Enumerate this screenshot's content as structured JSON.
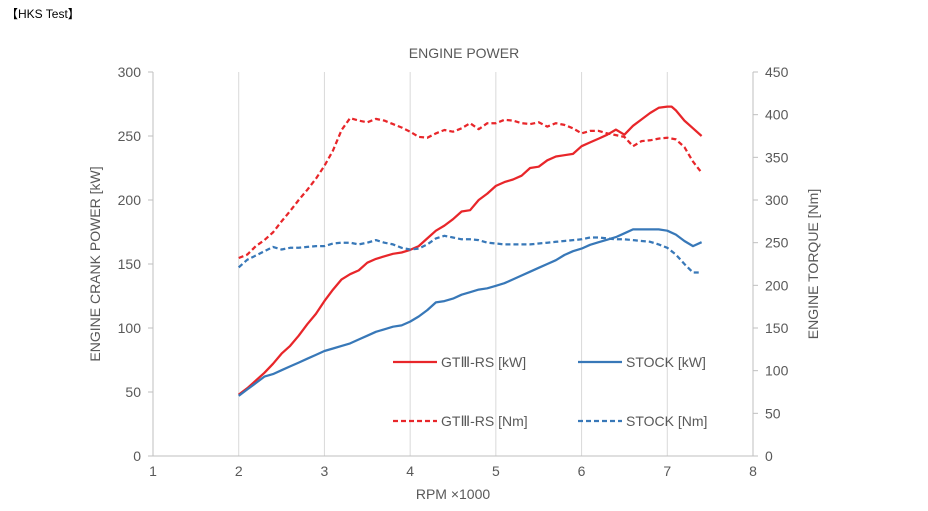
{
  "header": "【HKS Test】",
  "chart_data": {
    "type": "line",
    "title": "ENGINE POWER",
    "xlabel": "RPM ×1000",
    "ylabel_left": "ENGINE CRANK POWER [kW]",
    "ylabel_right": "ENGINE TORQUE [Nm]",
    "xlim": [
      1,
      8
    ],
    "ylim_left": [
      0,
      300
    ],
    "ylim_right": [
      0,
      450
    ],
    "x_ticks": [
      "1",
      "2",
      "3",
      "4",
      "5",
      "6",
      "7",
      "8"
    ],
    "y_ticks_left": [
      "0",
      "50",
      "100",
      "150",
      "200",
      "250",
      "300"
    ],
    "y_ticks_right": [
      "0",
      "50",
      "100",
      "150",
      "200",
      "250",
      "300",
      "350",
      "400",
      "450"
    ],
    "grid": "vertical",
    "legend_position": "center-right",
    "series": [
      {
        "name": "GTⅢ-RS [kW]",
        "axis": "left",
        "style": "solid",
        "color": "#e8262a",
        "x": [
          2.0,
          2.1,
          2.2,
          2.3,
          2.4,
          2.5,
          2.6,
          2.7,
          2.8,
          2.9,
          3.0,
          3.1,
          3.2,
          3.3,
          3.4,
          3.5,
          3.6,
          3.7,
          3.8,
          3.9,
          4.0,
          4.1,
          4.2,
          4.3,
          4.4,
          4.5,
          4.6,
          4.7,
          4.8,
          4.9,
          5.0,
          5.1,
          5.2,
          5.3,
          5.4,
          5.5,
          5.6,
          5.7,
          5.8,
          5.9,
          6.0,
          6.1,
          6.2,
          6.3,
          6.4,
          6.5,
          6.6,
          6.7,
          6.8,
          6.9,
          7.0,
          7.05,
          7.1,
          7.2,
          7.3,
          7.4
        ],
        "y": [
          48,
          53,
          59,
          65,
          72,
          80,
          86,
          94,
          103,
          111,
          121,
          130,
          138,
          142,
          145,
          151,
          154,
          156,
          158,
          159,
          161,
          164,
          170,
          176,
          180,
          185,
          191,
          192,
          200,
          205,
          211,
          214,
          216,
          219,
          225,
          226,
          231,
          234,
          235,
          236,
          242,
          245,
          248,
          251,
          255,
          251,
          258,
          263,
          268,
          272,
          273,
          273,
          270,
          262,
          256,
          250
        ]
      },
      {
        "name": "STOCK [kW]",
        "axis": "left",
        "style": "solid",
        "color": "#3878b8",
        "x": [
          2.0,
          2.1,
          2.2,
          2.3,
          2.4,
          2.5,
          2.6,
          2.7,
          2.8,
          2.9,
          3.0,
          3.1,
          3.2,
          3.3,
          3.4,
          3.5,
          3.6,
          3.7,
          3.8,
          3.9,
          4.0,
          4.1,
          4.2,
          4.3,
          4.4,
          4.5,
          4.6,
          4.7,
          4.8,
          4.9,
          5.0,
          5.1,
          5.2,
          5.3,
          5.4,
          5.5,
          5.6,
          5.7,
          5.8,
          5.9,
          6.0,
          6.1,
          6.2,
          6.3,
          6.4,
          6.5,
          6.6,
          6.7,
          6.8,
          6.9,
          7.0,
          7.1,
          7.2,
          7.3,
          7.4
        ],
        "y": [
          47,
          52,
          57,
          62,
          64,
          67,
          70,
          73,
          76,
          79,
          82,
          84,
          86,
          88,
          91,
          94,
          97,
          99,
          101,
          102,
          105,
          109,
          114,
          120,
          121,
          123,
          126,
          128,
          130,
          131,
          133,
          135,
          138,
          141,
          144,
          147,
          150,
          153,
          157,
          160,
          162,
          165,
          167,
          169,
          171,
          174,
          177,
          177,
          177,
          177,
          176,
          173,
          168,
          164,
          167
        ]
      },
      {
        "name": "GTⅢ-RS [Nm]",
        "axis": "right",
        "style": "dashed",
        "color": "#e8262a",
        "x": [
          2.0,
          2.1,
          2.2,
          2.3,
          2.4,
          2.5,
          2.6,
          2.7,
          2.8,
          2.9,
          3.0,
          3.1,
          3.2,
          3.3,
          3.4,
          3.5,
          3.6,
          3.7,
          3.8,
          3.9,
          4.0,
          4.1,
          4.2,
          4.3,
          4.4,
          4.5,
          4.6,
          4.7,
          4.8,
          4.9,
          5.0,
          5.1,
          5.2,
          5.3,
          5.4,
          5.5,
          5.6,
          5.7,
          5.8,
          5.9,
          6.0,
          6.1,
          6.2,
          6.3,
          6.4,
          6.5,
          6.6,
          6.7,
          6.8,
          6.9,
          7.0,
          7.1,
          7.2,
          7.3,
          7.4
        ],
        "y": [
          232,
          236,
          246,
          253,
          262,
          275,
          287,
          300,
          312,
          325,
          340,
          358,
          382,
          396,
          393,
          391,
          395,
          393,
          389,
          385,
          380,
          374,
          373,
          378,
          382,
          380,
          384,
          390,
          383,
          390,
          390,
          394,
          393,
          390,
          389,
          391,
          386,
          390,
          388,
          384,
          378,
          381,
          381,
          378,
          376,
          374,
          363,
          369,
          370,
          372,
          373,
          371,
          362,
          345,
          332
        ]
      },
      {
        "name": "STOCK [Nm]",
        "axis": "right",
        "style": "dashed",
        "color": "#3878b8",
        "x": [
          2.0,
          2.1,
          2.2,
          2.3,
          2.4,
          2.5,
          2.6,
          2.7,
          2.8,
          2.9,
          3.0,
          3.1,
          3.2,
          3.3,
          3.4,
          3.5,
          3.6,
          3.7,
          3.8,
          3.9,
          4.0,
          4.1,
          4.2,
          4.3,
          4.4,
          4.5,
          4.6,
          4.7,
          4.8,
          4.9,
          5.0,
          5.1,
          5.2,
          5.3,
          5.4,
          5.5,
          5.6,
          5.7,
          5.8,
          5.9,
          6.0,
          6.1,
          6.2,
          6.3,
          6.4,
          6.5,
          6.6,
          6.7,
          6.8,
          6.9,
          7.0,
          7.1,
          7.2,
          7.3,
          7.4
        ],
        "y": [
          221,
          230,
          235,
          240,
          245,
          242,
          244,
          244,
          245,
          246,
          246,
          249,
          250,
          250,
          248,
          250,
          253,
          250,
          248,
          244,
          242,
          243,
          248,
          255,
          258,
          256,
          254,
          254,
          253,
          250,
          249,
          248,
          248,
          248,
          248,
          249,
          250,
          251,
          252,
          253,
          254,
          256,
          256,
          255,
          254,
          254,
          253,
          252,
          251,
          248,
          244,
          236,
          225,
          215,
          215
        ]
      }
    ]
  }
}
